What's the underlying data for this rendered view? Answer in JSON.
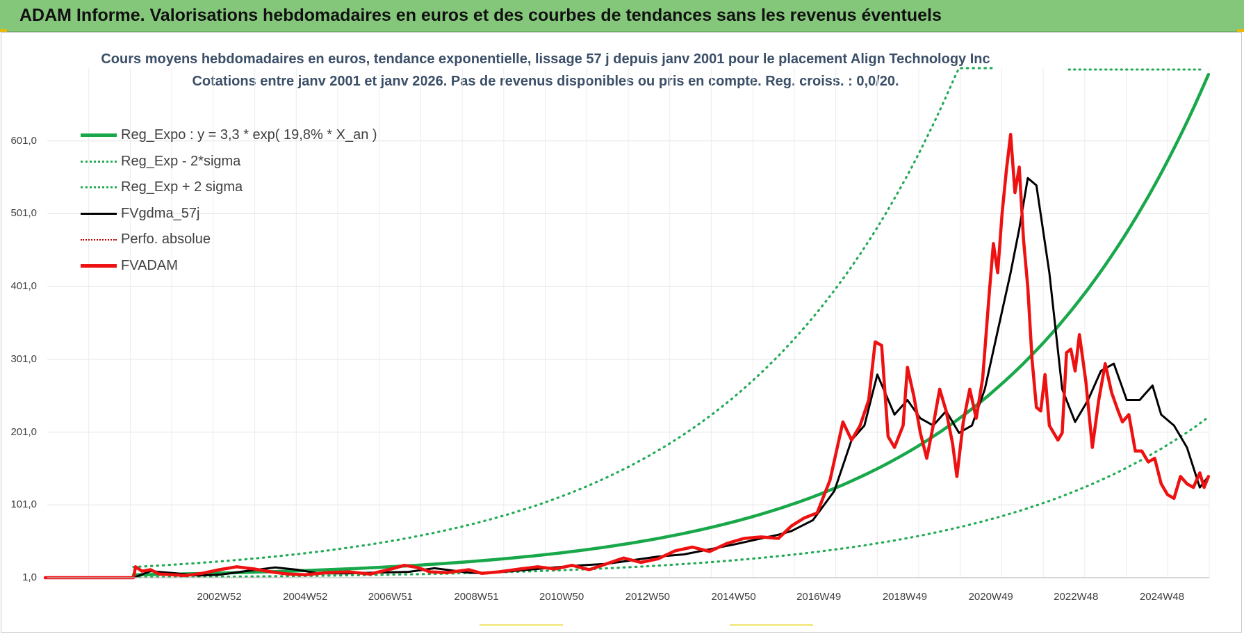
{
  "header": {
    "title": "ADAM Informe. Valorisations hebdomadaires en euros et des courbes de tendances sans les revenus éventuels"
  },
  "chart_data": {
    "type": "line",
    "title": "Cours moyens hebdomadaires en euros, tendance exponentielle, lissage 57 j depuis janv 2001 pour le placement Align Technology Inc",
    "subtitle": "Cotations entre janv 2001 et janv 2026. Pas de revenus disponibles ou pris en compte. Reg. croiss. : 0,0/20.",
    "x_range": [
      "1998W52",
      "2026W01"
    ],
    "ylim": [
      1,
      701
    ],
    "y_ticks": [
      "1,0",
      "101,0",
      "201,0",
      "301,0",
      "401,0",
      "501,0",
      "601,0"
    ],
    "x_ticks": [
      "2002W52",
      "2004W52",
      "2006W51",
      "2008W51",
      "2010W50",
      "2012W50",
      "2014W50",
      "2016W49",
      "2018W49",
      "2020W49",
      "2022W48",
      "2024W48"
    ],
    "grid": true,
    "legend_position": "top-left",
    "series": [
      {
        "name": "Reg_Expo : y = 3,3 * exp( 19,8% *  X_an )",
        "color": "#18a84a",
        "style": "solid-thick",
        "formula": {
          "a": 3.3,
          "rate": 0.198,
          "x0": 2001.0,
          "x1": 2026.0
        }
      },
      {
        "name": "Reg_Exp - 2*sigma",
        "color": "#22aa55",
        "style": "dotted",
        "formula": {
          "a": 3.3,
          "rate": 0.198,
          "factor": 0.32,
          "x0": 2001.0,
          "x1": 2026.0
        }
      },
      {
        "name": "Reg_Exp + 2 sigma",
        "color": "#22aa55",
        "style": "dotted",
        "formula": {
          "a": 3.3,
          "rate": 0.198,
          "factor": 3.2,
          "x0": 2001.0,
          "x1": 2021.0
        }
      },
      {
        "name": "FVgdma_57j",
        "color": "#000000",
        "style": "solid",
        "x": [
          1998.95,
          2001.0,
          2001.4,
          2002.0,
          2002.5,
          2003.0,
          2003.6,
          2004.3,
          2004.8,
          2005.3,
          2006.0,
          2006.6,
          2007.4,
          2008.0,
          2008.8,
          2009.2,
          2010.0,
          2010.8,
          2011.4,
          2012.0,
          2012.6,
          2013.2,
          2013.8,
          2014.4,
          2015.0,
          2015.6,
          2016.0,
          2016.3,
          2016.8,
          2017.3,
          2017.7,
          2018.0,
          2018.3,
          2018.7,
          2019.0,
          2019.3,
          2019.6,
          2019.9,
          2020.2,
          2020.5,
          2020.8,
          2021.1,
          2021.4,
          2021.6,
          2021.8,
          2022.0,
          2022.3,
          2022.6,
          2022.9,
          2023.2,
          2023.5,
          2023.8,
          2024.1,
          2024.4,
          2024.7,
          2024.9,
          2025.2,
          2025.5,
          2025.8,
          2026.0
        ],
        "y": [
          1,
          1,
          10,
          7,
          4,
          5,
          10,
          15,
          12,
          7,
          7,
          8,
          9,
          14,
          8,
          7,
          11,
          15,
          18,
          20,
          25,
          30,
          33,
          40,
          47,
          55,
          60,
          65,
          80,
          120,
          190,
          210,
          280,
          225,
          245,
          220,
          210,
          230,
          200,
          210,
          260,
          340,
          420,
          480,
          550,
          540,
          420,
          260,
          215,
          245,
          285,
          295,
          245,
          245,
          265,
          225,
          210,
          180,
          125,
          140
        ]
      },
      {
        "name": "Perfo. absolue",
        "color": "#c00000",
        "style": "dotted-thin",
        "x": [],
        "y": []
      },
      {
        "name": "FVADAM",
        "color": "#ee1111",
        "style": "solid-thick",
        "x": [
          1998.95,
          2001.0,
          2001.05,
          2001.2,
          2001.4,
          2001.6,
          2001.9,
          2002.2,
          2002.6,
          2003.0,
          2003.4,
          2003.8,
          2004.2,
          2004.6,
          2005.0,
          2005.5,
          2006.0,
          2006.5,
          2007.0,
          2007.3,
          2007.6,
          2007.9,
          2008.3,
          2008.8,
          2009.1,
          2009.5,
          2010.0,
          2010.4,
          2010.8,
          2011.2,
          2011.6,
          2012.0,
          2012.4,
          2012.8,
          2013.2,
          2013.6,
          2014.0,
          2014.4,
          2014.8,
          2015.2,
          2015.6,
          2016.0,
          2016.3,
          2016.6,
          2016.9,
          2017.2,
          2017.5,
          2017.7,
          2017.9,
          2018.1,
          2018.25,
          2018.4,
          2018.55,
          2018.7,
          2018.9,
          2019.0,
          2019.15,
          2019.3,
          2019.45,
          2019.6,
          2019.75,
          2019.9,
          2020.05,
          2020.15,
          2020.3,
          2020.45,
          2020.6,
          2020.75,
          2020.9,
          2021.0,
          2021.1,
          2021.2,
          2021.3,
          2021.4,
          2021.5,
          2021.6,
          2021.7,
          2021.8,
          2021.9,
          2022.0,
          2022.1,
          2022.2,
          2022.3,
          2022.4,
          2022.5,
          2022.6,
          2022.7,
          2022.8,
          2022.9,
          2023.0,
          2023.15,
          2023.3,
          2023.45,
          2023.6,
          2023.75,
          2023.9,
          2024.0,
          2024.15,
          2024.3,
          2024.45,
          2024.6,
          2024.75,
          2024.9,
          2025.05,
          2025.2,
          2025.35,
          2025.5,
          2025.65,
          2025.8,
          2025.9,
          2026.0
        ],
        "y": [
          1,
          1,
          16,
          10,
          12,
          6,
          5,
          4,
          7,
          12,
          16,
          13,
          9,
          6,
          5,
          8,
          9,
          6,
          13,
          18,
          15,
          9,
          8,
          12,
          7,
          9,
          13,
          16,
          13,
          18,
          12,
          20,
          28,
          22,
          27,
          38,
          43,
          37,
          48,
          55,
          57,
          55,
          72,
          83,
          90,
          135,
          215,
          190,
          210,
          245,
          325,
          320,
          195,
          180,
          210,
          290,
          250,
          200,
          165,
          210,
          260,
          230,
          185,
          140,
          215,
          260,
          220,
          275,
          390,
          460,
          420,
          500,
          560,
          610,
          530,
          565,
          465,
          400,
          300,
          235,
          230,
          280,
          210,
          200,
          190,
          200,
          310,
          315,
          285,
          335,
          270,
          180,
          245,
          295,
          255,
          230,
          215,
          225,
          175,
          175,
          160,
          165,
          130,
          115,
          110,
          140,
          130,
          125,
          145,
          125,
          140
        ]
      }
    ]
  }
}
